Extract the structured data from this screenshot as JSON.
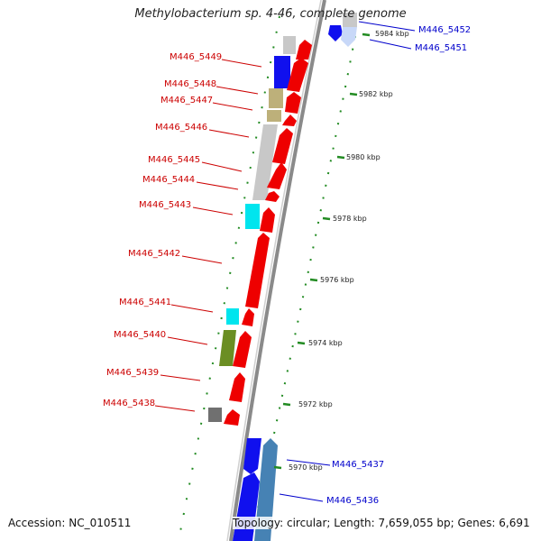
{
  "title": "Methylobacterium sp. 4-46, complete genome",
  "accession": "Accession: NC_010511",
  "summary": "Topology: circular; Length: 7,659,055 bp; Genes: 6,691",
  "colors": {
    "forward_gene": "#ee0000",
    "reverse_gene": "#1010ee",
    "gray_gene": "#c8c8c8",
    "tan_gene": "#bdb07a",
    "cyan_gene": "#00e5ee",
    "olive_gene": "#6b8e23",
    "dark_gray_gene": "#707070",
    "steel_gene": "#4682b4",
    "backbone": "#888888",
    "tick": "#228b22",
    "left_label": "#cc0000",
    "right_label": "#0000cc"
  },
  "scale": {
    "unit": "kbp",
    "ticks": [
      {
        "label": "5984 kbp"
      },
      {
        "label": "5982 kbp"
      },
      {
        "label": "5980 kbp"
      },
      {
        "label": "5978 kbp"
      },
      {
        "label": "5976 kbp"
      },
      {
        "label": "5974 kbp"
      },
      {
        "label": "5972 kbp"
      },
      {
        "label": "5970 kbp"
      }
    ]
  },
  "genes": {
    "left_labels": [
      "M446_5449",
      "M446_5448",
      "M446_5447",
      "M446_5446",
      "M446_5445",
      "M446_5444",
      "M446_5443",
      "M446_5442",
      "M446_5441",
      "M446_5440",
      "M446_5439",
      "M446_5438"
    ],
    "right_labels": [
      "M446_5452",
      "M446_5451",
      "M446_5437",
      "M446_5436"
    ]
  }
}
